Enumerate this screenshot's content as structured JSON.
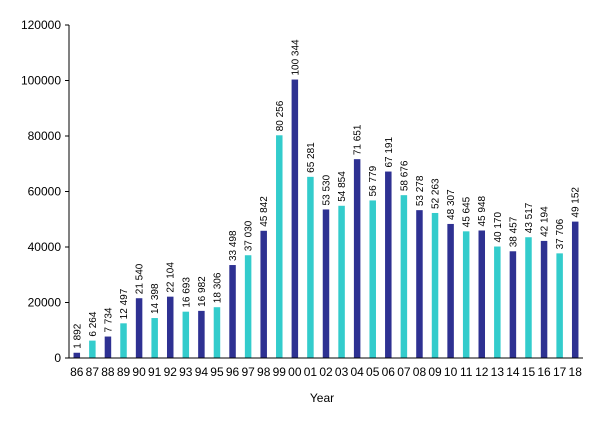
{
  "chart_data": {
    "type": "bar",
    "xlabel": "Year",
    "ylabel": "",
    "ylim": [
      0,
      120000
    ],
    "yticks": [
      0,
      20000,
      40000,
      60000,
      80000,
      100000,
      120000
    ],
    "grid": false,
    "legend": "none",
    "colors": {
      "dark": "#2e3192",
      "light": "#33cccc"
    },
    "categories": [
      "86",
      "87",
      "88",
      "89",
      "90",
      "91",
      "92",
      "93",
      "94",
      "95",
      "96",
      "97",
      "98",
      "99",
      "00",
      "01",
      "02",
      "03",
      "04",
      "05",
      "06",
      "07",
      "08",
      "09",
      "10",
      "11",
      "12",
      "13",
      "14",
      "15",
      "16",
      "17",
      "18"
    ],
    "values": [
      1892,
      6264,
      7734,
      12497,
      21540,
      14398,
      22104,
      16693,
      16982,
      18306,
      33498,
      37030,
      45842,
      80256,
      100344,
      65281,
      53530,
      54854,
      71651,
      56779,
      67191,
      58676,
      53278,
      52263,
      48307,
      45645,
      45948,
      40170,
      38457,
      43517,
      42194,
      37706,
      49152
    ],
    "labels": [
      "1 892",
      "6 264",
      "7 734",
      "12 497",
      "21 540",
      "14 398",
      "22 104",
      "16 693",
      "16 982",
      "18 306",
      "33 498",
      "37 030",
      "45 842",
      "80 256",
      "100 344",
      "65 281",
      "53 530",
      "54 854",
      "71 651",
      "56 779",
      "67 191",
      "58 676",
      "53 278",
      "52 263",
      "48 307",
      "45 645",
      "45 948",
      "40 170",
      "38 457",
      "43 517",
      "42 194",
      "37 706",
      "49 152"
    ],
    "bar_colors": [
      "dark",
      "light",
      "dark",
      "light",
      "dark",
      "light",
      "dark",
      "light",
      "dark",
      "light",
      "dark",
      "light",
      "dark",
      "light",
      "dark",
      "light",
      "dark",
      "light",
      "dark",
      "light",
      "dark",
      "light",
      "dark",
      "light",
      "dark",
      "light",
      "dark",
      "light",
      "dark",
      "light",
      "dark",
      "light",
      "dark"
    ]
  }
}
